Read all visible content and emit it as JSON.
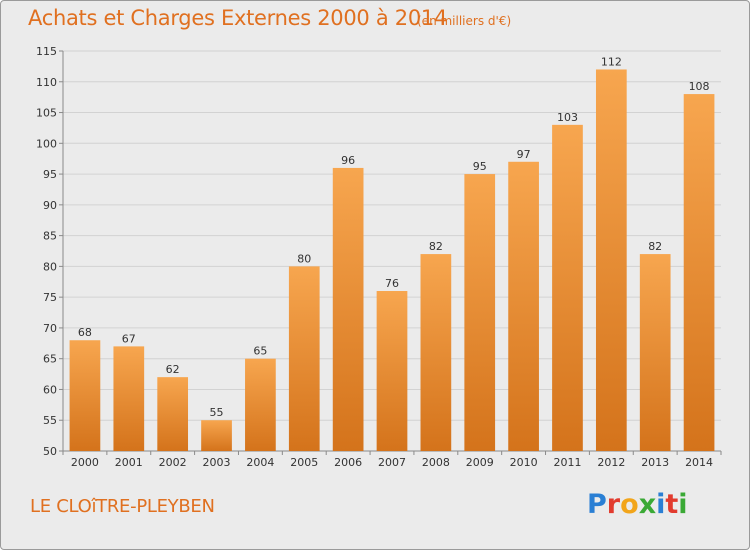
{
  "header": {
    "title": "Achats et Charges Externes 2000 à 2014",
    "unit": "(en milliers d'€)"
  },
  "footer": {
    "commune": "LE CLOîTRE-PLEYBEN",
    "logo_letters": [
      {
        "char": "P",
        "color": "#2a7fd4"
      },
      {
        "char": "r",
        "color": "#e23b2e"
      },
      {
        "char": "o",
        "color": "#f2a51a"
      },
      {
        "char": "x",
        "color": "#3aa935"
      },
      {
        "char": "i",
        "color": "#2a7fd4"
      },
      {
        "char": "t",
        "color": "#e23b2e"
      },
      {
        "char": "i",
        "color": "#3aa935"
      }
    ]
  },
  "chart_data": {
    "type": "bar",
    "title": "Achats et Charges Externes 2000 à 2014",
    "subtitle": "(en milliers d'€)",
    "categories": [
      "2000",
      "2001",
      "2002",
      "2003",
      "2004",
      "2005",
      "2006",
      "2007",
      "2008",
      "2009",
      "2010",
      "2011",
      "2012",
      "2013",
      "2014"
    ],
    "values": [
      68,
      67,
      62,
      55,
      65,
      80,
      96,
      76,
      82,
      95,
      97,
      103,
      112,
      82,
      108
    ],
    "ylim": [
      50,
      115
    ],
    "yticks": [
      50,
      55,
      60,
      65,
      70,
      75,
      80,
      85,
      90,
      95,
      100,
      105,
      110,
      115
    ],
    "grid": true,
    "bar_color_top": "#f7a64f",
    "bar_color_bottom": "#d4731b",
    "text_color": "#e07020"
  }
}
